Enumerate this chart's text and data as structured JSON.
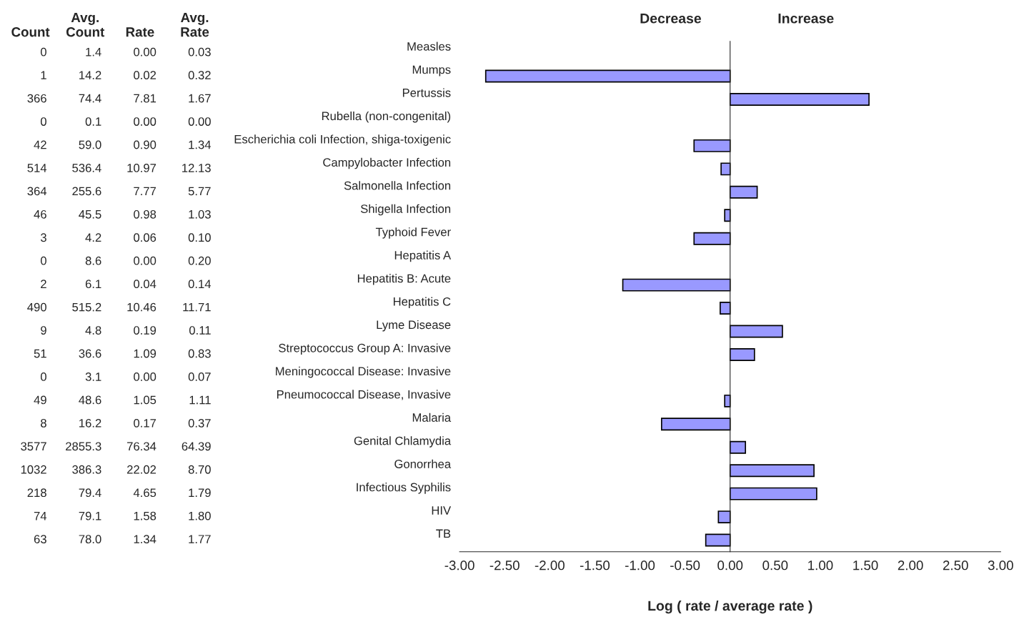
{
  "chart_data": [
    {
      "type": "other",
      "categories": [
        "Count",
        "Avg.\nCount",
        "Rate",
        "Avg.\nRate"
      ],
      "cell_labels": [
        [
          "0",
          "1.4",
          "0.00",
          "0.03"
        ],
        [
          "1",
          "14.2",
          "0.02",
          "0.32"
        ],
        [
          "366",
          "74.4",
          "7.81",
          "1.67"
        ],
        [
          "0",
          "0.1",
          "0.00",
          "0.00"
        ],
        [
          "42",
          "59.0",
          "0.90",
          "1.34"
        ],
        [
          "514",
          "536.4",
          "10.97",
          "12.13"
        ],
        [
          "364",
          "255.6",
          "7.77",
          "5.77"
        ],
        [
          "46",
          "45.5",
          "0.98",
          "1.03"
        ],
        [
          "3",
          "4.2",
          "0.06",
          "0.10"
        ],
        [
          "0",
          "8.6",
          "0.00",
          "0.20"
        ],
        [
          "2",
          "6.1",
          "0.04",
          "0.14"
        ],
        [
          "490",
          "515.2",
          "10.46",
          "11.71"
        ],
        [
          "9",
          "4.8",
          "0.19",
          "0.11"
        ],
        [
          "51",
          "36.6",
          "1.09",
          "0.83"
        ],
        [
          "0",
          "3.1",
          "0.00",
          "0.07"
        ],
        [
          "49",
          "48.6",
          "1.05",
          "1.11"
        ],
        [
          "8",
          "16.2",
          "0.17",
          "0.37"
        ],
        [
          "3577",
          "2855.3",
          "76.34",
          "64.39"
        ],
        [
          "1032",
          "386.3",
          "22.02",
          "8.70"
        ],
        [
          "218",
          "79.4",
          "4.65",
          "1.79"
        ],
        [
          "74",
          "79.1",
          "1.58",
          "1.80"
        ],
        [
          "63",
          "78.0",
          "1.34",
          "1.77"
        ]
      ]
    },
    {
      "type": "bar",
      "orientation": "horizontal",
      "xlabel": "Log ( rate / average rate )",
      "annotations": [
        "Decrease",
        "Increase"
      ],
      "categories": [
        "Measles",
        "Mumps",
        "Pertussis",
        "Rubella (non-congenital)",
        "Escherichia coli Infection, shiga-toxigenic",
        "Campylobacter Infection",
        "Salmonella Infection",
        "Shigella Infection",
        "Typhoid Fever",
        "Hepatitis A",
        "Hepatitis B: Acute",
        "Hepatitis C",
        "Lyme Disease",
        "Streptococcus Group A: Invasive",
        "Meningococcal Disease: Invasive",
        "Pneumococcal Disease, Invasive",
        "Malaria",
        "Genital Chlamydia",
        "Gonorrhea",
        "Infectious Syphilis",
        "HIV",
        "TB"
      ],
      "values": [
        null,
        -2.71,
        1.54,
        null,
        -0.4,
        -0.1,
        0.3,
        -0.06,
        -0.4,
        null,
        -1.19,
        -0.11,
        0.58,
        0.27,
        null,
        -0.06,
        -0.76,
        0.17,
        0.93,
        0.96,
        -0.13,
        -0.27
      ],
      "color": "#9999ff",
      "xlim": [
        -3,
        3
      ],
      "xticks": [
        {
          "value": -3,
          "label": "-3.00"
        },
        {
          "value": -2.5,
          "label": "-2.50"
        },
        {
          "value": -2,
          "label": "-2.00"
        },
        {
          "value": -1.5,
          "label": "-1.50"
        },
        {
          "value": -1,
          "label": "-1.00"
        },
        {
          "value": -0.5,
          "label": "-0.50"
        },
        {
          "value": 0,
          "label": "0.00"
        },
        {
          "value": 0.5,
          "label": "0.50"
        },
        {
          "value": 1,
          "label": "1.00"
        },
        {
          "value": 1.5,
          "label": "1.50"
        },
        {
          "value": 2,
          "label": "2.00"
        },
        {
          "value": 2.5,
          "label": "2.50"
        },
        {
          "value": 3,
          "label": "3.00"
        }
      ],
      "legend": false
    }
  ]
}
